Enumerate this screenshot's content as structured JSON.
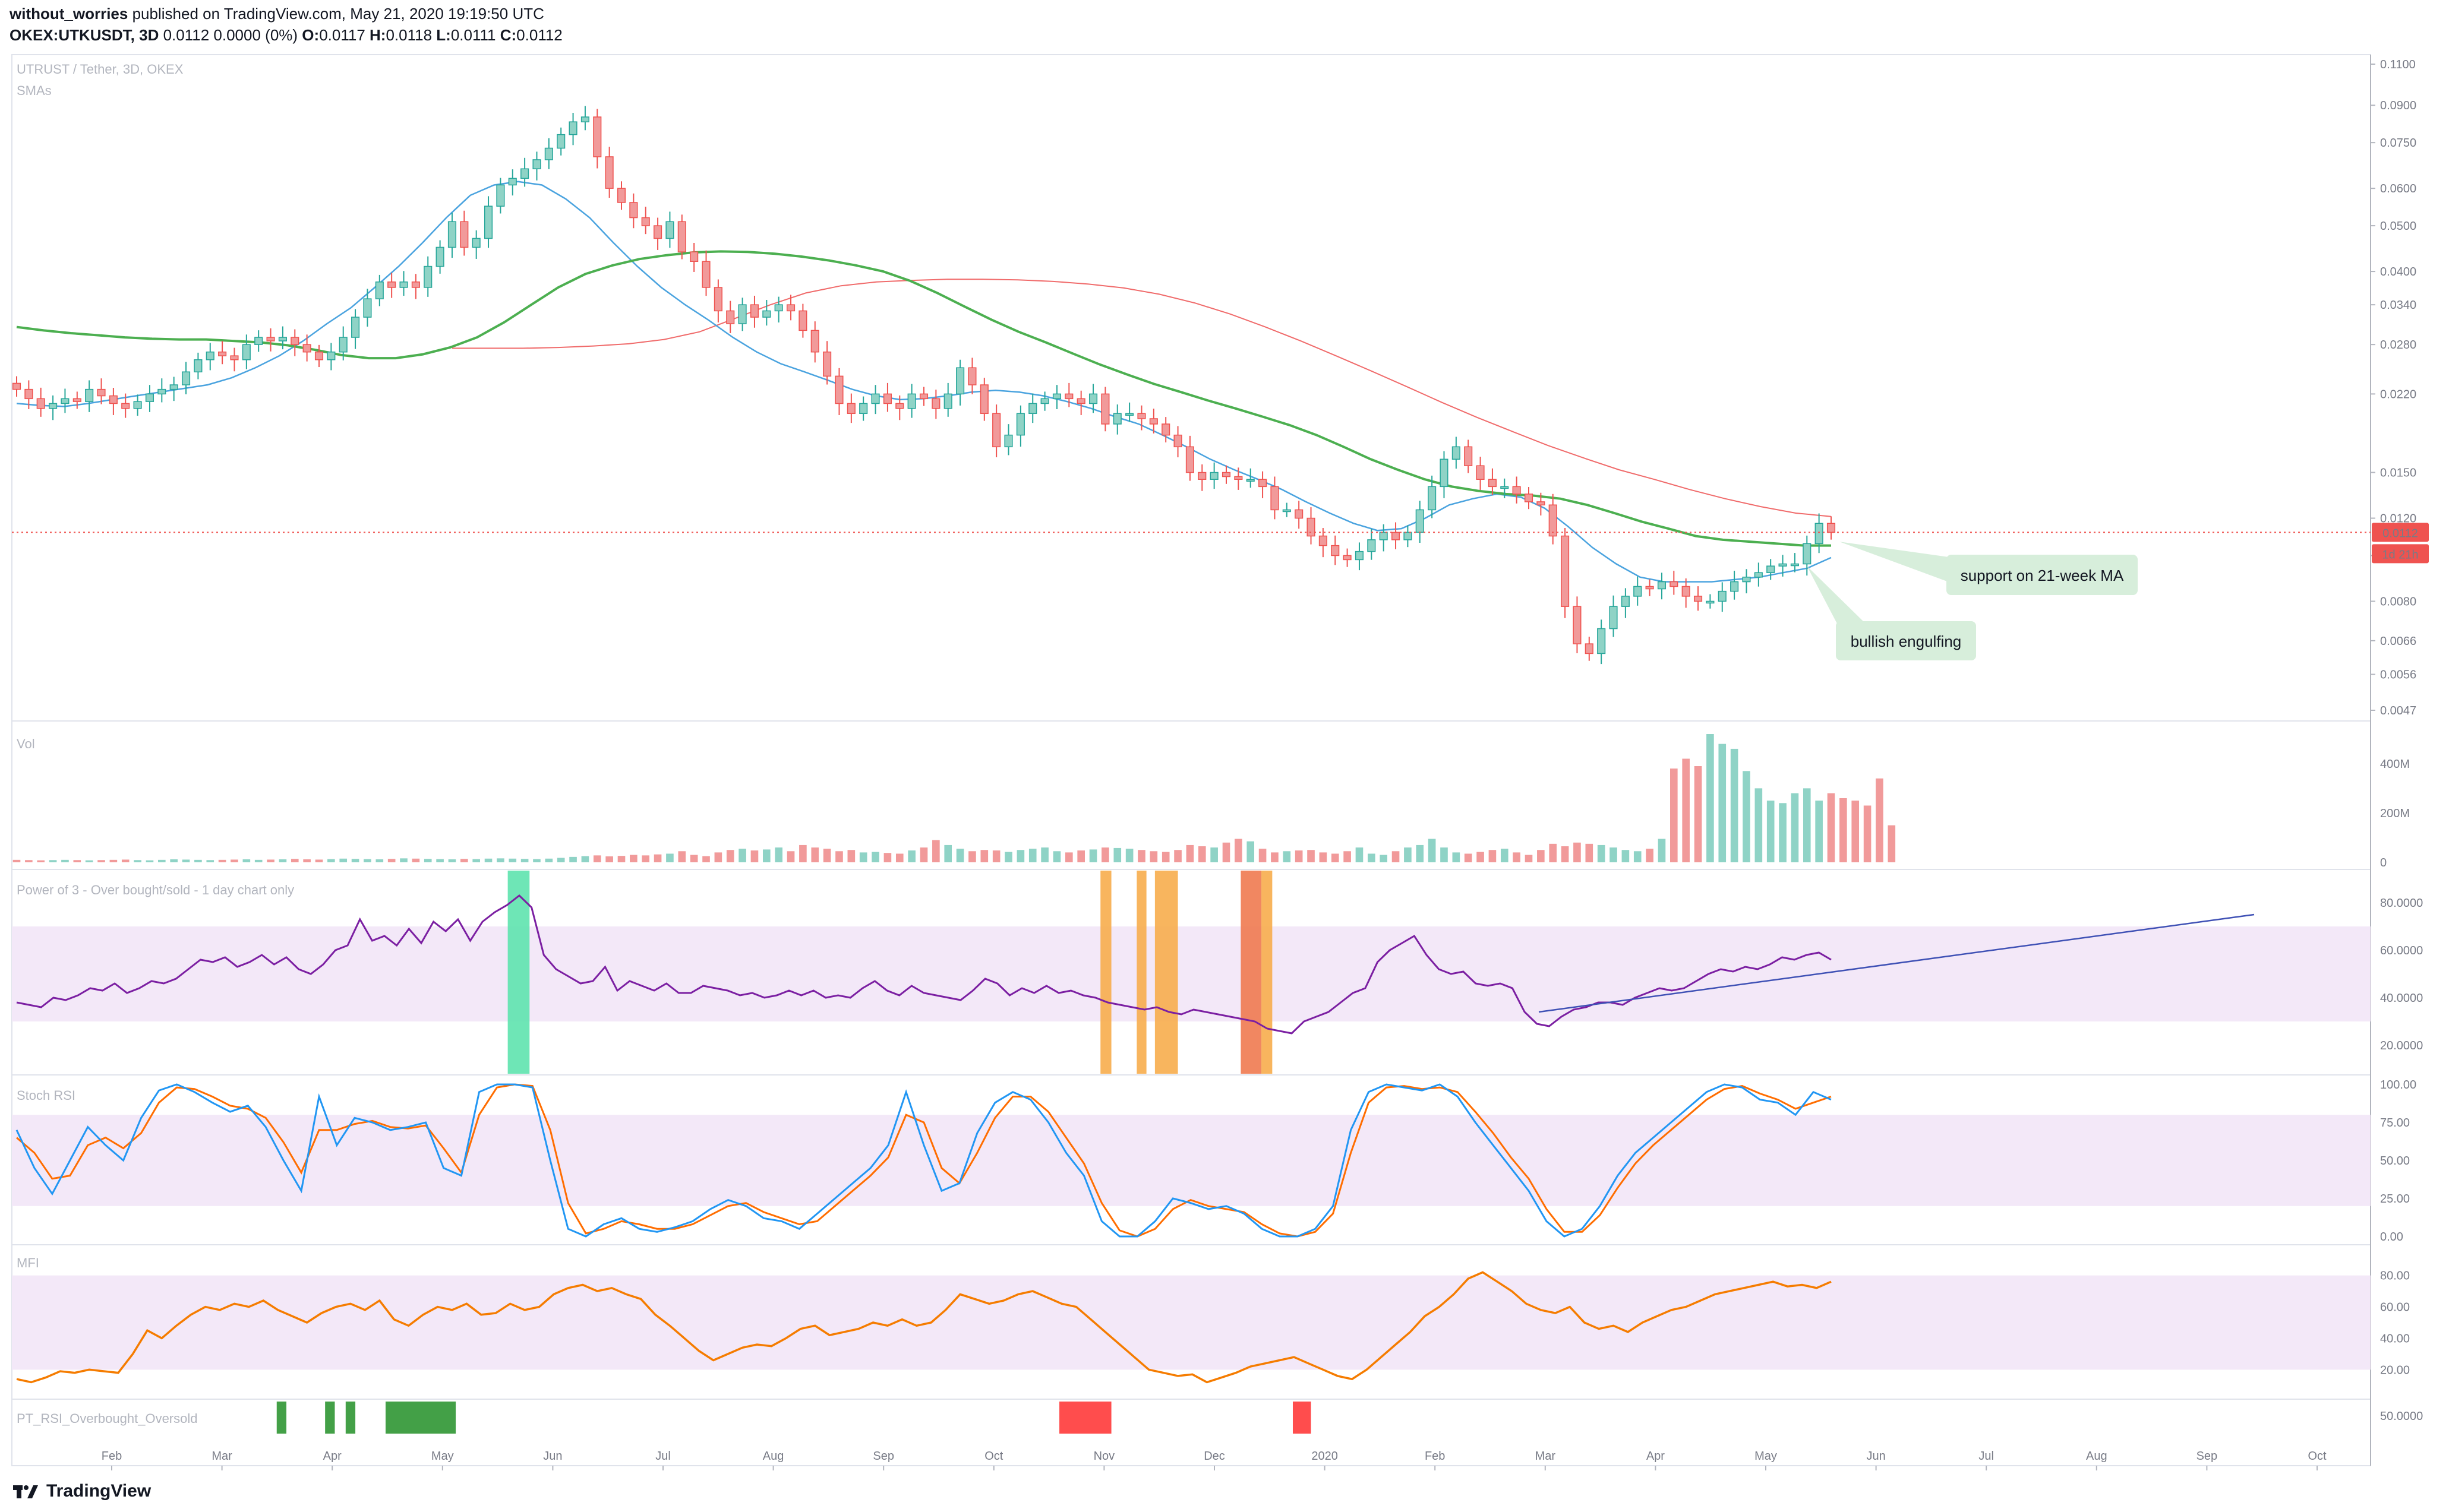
{
  "header": {
    "author": "without_worries",
    "published": "published on TradingView.com, May 21, 2020 19:19:50 UTC",
    "symbol": "OKEX:UTKUSDT, 3D",
    "ohlc": "O:0.0117 H:0.0118 L:0.0111 C:0.0112",
    "ohlc_parts": [
      {
        "k": "",
        "v": "0.0112 0.0000 (0%)"
      },
      {
        "k": "O:",
        "v": "0.0117"
      },
      {
        "k": "H:",
        "v": "0.0118"
      },
      {
        "k": "L:",
        "v": "0.0111"
      },
      {
        "k": "C:",
        "v": "0.0112"
      }
    ]
  },
  "footer": {
    "brand": "TradingView"
  },
  "colors": {
    "up": "#8fd3c6",
    "down": "#f19a9a",
    "upw": "#26a69a",
    "downw": "#ef5350",
    "sma_blue": "#4aa3df",
    "sma_green": "#4caf50",
    "sma_red": "#f06b6b",
    "power": "#7b1fa2",
    "stoch_k": "#2196f3",
    "stoch_d": "#ff6d00",
    "mfi": "#f57c00",
    "band": "#f3e8f8",
    "trend": "#3f51b5"
  },
  "chart_data": [
    {
      "type": "candlestick",
      "title": "UTRUST / Tether, 3D, OKEX",
      "subtitle": "SMAs",
      "scale": "log",
      "yticks": [
        "0.1100",
        "0.0900",
        "0.0750",
        "0.0600",
        "0.0500",
        "0.0400",
        "0.0340",
        "0.0280",
        "0.0220",
        "0.0150",
        "0.0120",
        "0.0100",
        "0.0080",
        "0.0066",
        "0.0056",
        "0.0047"
      ],
      "last_price_label": "0.0112",
      "countdown_label": "1d 21h",
      "x_labels": [
        "Feb",
        "Mar",
        "Apr",
        "May",
        "Jun",
        "Jul",
        "Aug",
        "Sep",
        "Oct",
        "Nov",
        "Dec",
        "2020",
        "Feb",
        "Mar",
        "Apr",
        "May",
        "Jun",
        "Jul",
        "Aug",
        "Sep",
        "Oct"
      ],
      "closes": [
        0.0225,
        0.0215,
        0.0205,
        0.021,
        0.0215,
        0.0212,
        0.0225,
        0.0218,
        0.021,
        0.0205,
        0.0212,
        0.022,
        0.0225,
        0.023,
        0.0245,
        0.026,
        0.027,
        0.0265,
        0.026,
        0.028,
        0.029,
        0.0285,
        0.029,
        0.028,
        0.027,
        0.026,
        0.027,
        0.029,
        0.032,
        0.035,
        0.038,
        0.037,
        0.038,
        0.037,
        0.041,
        0.045,
        0.051,
        0.045,
        0.047,
        0.055,
        0.061,
        0.063,
        0.066,
        0.069,
        0.073,
        0.078,
        0.083,
        0.085,
        0.07,
        0.06,
        0.056,
        0.052,
        0.05,
        0.047,
        0.051,
        0.044,
        0.042,
        0.037,
        0.033,
        0.031,
        0.034,
        0.032,
        0.033,
        0.034,
        0.033,
        0.03,
        0.027,
        0.024,
        0.021,
        0.02,
        0.021,
        0.022,
        0.021,
        0.0205,
        0.022,
        0.0215,
        0.0205,
        0.022,
        0.025,
        0.023,
        0.02,
        0.017,
        0.018,
        0.02,
        0.021,
        0.0215,
        0.022,
        0.0215,
        0.021,
        0.022,
        0.019,
        0.02,
        0.02,
        0.0195,
        0.019,
        0.018,
        0.017,
        0.015,
        0.0145,
        0.015,
        0.0147,
        0.0145,
        0.0145,
        0.014,
        0.0125,
        0.0125,
        0.012,
        0.011,
        0.0105,
        0.01,
        0.0098,
        0.0102,
        0.0108,
        0.0112,
        0.0108,
        0.0112,
        0.0125,
        0.014,
        0.016,
        0.017,
        0.0155,
        0.0145,
        0.014,
        0.014,
        0.0135,
        0.013,
        0.0128,
        0.011,
        0.0078,
        0.0065,
        0.0062,
        0.007,
        0.0078,
        0.0082,
        0.0086,
        0.0085,
        0.0088,
        0.0086,
        0.0082,
        0.008,
        0.008,
        0.0084,
        0.0088,
        0.009,
        0.0092,
        0.0095,
        0.0096,
        0.0096,
        0.0106,
        0.0117,
        0.0112
      ],
      "series": [
        {
          "name": "SMA short",
          "color": "sma_blue",
          "values": [
            0.021,
            0.0208,
            0.0207,
            0.021,
            0.0214,
            0.0218,
            0.0222,
            0.0226,
            0.023,
            0.0238,
            0.025,
            0.0265,
            0.0285,
            0.031,
            0.0335,
            0.037,
            0.041,
            0.046,
            0.052,
            0.058,
            0.061,
            0.062,
            0.061,
            0.057,
            0.052,
            0.046,
            0.041,
            0.037,
            0.034,
            0.0315,
            0.029,
            0.027,
            0.0255,
            0.0245,
            0.0235,
            0.0225,
            0.0218,
            0.0214,
            0.0215,
            0.0218,
            0.0222,
            0.0224,
            0.0222,
            0.0218,
            0.0212,
            0.0205,
            0.0197,
            0.019,
            0.018,
            0.017,
            0.016,
            0.0152,
            0.0145,
            0.0138,
            0.013,
            0.0123,
            0.0117,
            0.0113,
            0.0114,
            0.012,
            0.0128,
            0.0132,
            0.0135,
            0.0133,
            0.0126,
            0.0115,
            0.0104,
            0.0096,
            0.009,
            0.0088,
            0.0088,
            0.0088,
            0.0089,
            0.009,
            0.0092,
            0.0094,
            0.0099
          ]
        },
        {
          "name": "SMA 21-week",
          "color": "sma_green",
          "values": [
            0.0305,
            0.03,
            0.0296,
            0.0293,
            0.029,
            0.0288,
            0.0287,
            0.0287,
            0.0285,
            0.0283,
            0.0279,
            0.0273,
            0.0266,
            0.0262,
            0.0262,
            0.0267,
            0.0276,
            0.029,
            0.0312,
            0.034,
            0.037,
            0.0395,
            0.0412,
            0.0425,
            0.0433,
            0.0439,
            0.0441,
            0.044,
            0.0436,
            0.043,
            0.0422,
            0.0412,
            0.04,
            0.0382,
            0.036,
            0.0337,
            0.0316,
            0.0298,
            0.0283,
            0.0268,
            0.0254,
            0.0242,
            0.0231,
            0.0222,
            0.0213,
            0.0205,
            0.0197,
            0.0189,
            0.018,
            0.017,
            0.016,
            0.0152,
            0.0145,
            0.014,
            0.0137,
            0.0135,
            0.0134,
            0.0132,
            0.0128,
            0.0123,
            0.0118,
            0.0114,
            0.011,
            0.0108,
            0.0107,
            0.0106,
            0.0105,
            0.0105
          ]
        },
        {
          "name": "SMA long",
          "color": "sma_red",
          "values": [
            0.0275,
            0.0275,
            0.0275,
            0.0276,
            0.0278,
            0.0281,
            0.0287,
            0.0298,
            0.0318,
            0.034,
            0.036,
            0.0373,
            0.038,
            0.0383,
            0.0385,
            0.0385,
            0.0384,
            0.0381,
            0.0376,
            0.0369,
            0.0358,
            0.0343,
            0.0325,
            0.0305,
            0.0285,
            0.0265,
            0.0246,
            0.0228,
            0.0211,
            0.0196,
            0.0183,
            0.0171,
            0.0161,
            0.0152,
            0.0145,
            0.0138,
            0.0132,
            0.0127,
            0.0123,
            0.0121
          ]
        }
      ],
      "annotations": [
        "support on 21-week MA",
        "bullish engulfing"
      ]
    },
    {
      "type": "bar",
      "title": "Vol",
      "yticks": [
        "400M",
        "200M",
        "0"
      ],
      "values_millions": [
        10,
        9,
        8,
        9,
        10,
        9,
        8,
        9,
        10,
        11,
        9,
        8,
        10,
        12,
        11,
        10,
        9,
        10,
        11,
        12,
        10,
        11,
        12,
        14,
        12,
        11,
        13,
        15,
        14,
        13,
        12,
        14,
        16,
        15,
        14,
        13,
        12,
        14,
        13,
        15,
        16,
        15,
        14,
        13,
        15,
        18,
        22,
        25,
        28,
        24,
        26,
        30,
        28,
        32,
        35,
        45,
        30,
        25,
        40,
        50,
        55,
        48,
        52,
        60,
        45,
        70,
        60,
        55,
        45,
        50,
        40,
        42,
        38,
        35,
        48,
        60,
        90,
        70,
        55,
        45,
        50,
        48,
        42,
        50,
        55,
        60,
        45,
        40,
        48,
        52,
        60,
        58,
        55,
        50,
        45,
        42,
        50,
        70,
        65,
        60,
        80,
        95,
        85,
        55,
        40,
        45,
        48,
        50,
        40,
        35,
        45,
        60,
        35,
        30,
        45,
        60,
        70,
        95,
        60,
        40,
        35,
        42,
        50,
        55,
        40,
        30,
        50,
        75,
        65,
        80,
        75,
        70,
        60,
        50,
        45,
        55,
        95,
        380,
        420,
        390,
        520,
        480,
        460,
        370,
        300,
        250,
        240,
        280,
        300,
        250,
        280,
        260,
        250,
        230,
        340,
        150
      ],
      "colors_up": [
        false,
        true,
        false,
        true,
        true,
        false,
        true,
        false,
        false,
        true
      ]
    },
    {
      "type": "line",
      "title": "Power of 3 - Over bought/sold - 1 day chart only",
      "yticks": [
        "80.0000",
        "60.0000",
        "40.0000",
        "20.0000"
      ],
      "values": [
        38,
        37,
        36,
        40,
        39,
        41,
        44,
        43,
        46,
        42,
        44,
        47,
        46,
        48,
        52,
        56,
        55,
        57,
        53,
        55,
        58,
        54,
        57,
        52,
        50,
        54,
        60,
        62,
        73,
        64,
        66,
        62,
        69,
        63,
        72,
        68,
        73,
        64,
        72,
        76,
        79,
        83,
        78,
        58,
        52,
        49,
        46,
        47,
        53,
        43,
        47,
        45,
        43,
        46,
        42,
        42,
        45,
        44,
        43,
        41,
        42,
        40,
        41,
        43,
        41,
        43,
        40,
        41,
        40,
        44,
        47,
        43,
        41,
        45,
        42,
        41,
        40,
        39,
        43,
        48,
        46,
        41,
        44,
        42,
        45,
        42,
        43,
        41,
        40,
        38,
        37,
        36,
        35,
        36,
        34,
        33,
        35,
        34,
        33,
        32,
        31,
        30,
        27,
        26,
        25,
        30,
        32,
        34,
        38,
        42,
        44,
        55,
        60,
        63,
        66,
        58,
        52,
        50,
        51,
        46,
        45,
        46,
        44,
        34,
        29,
        28,
        32,
        35,
        36,
        38,
        38,
        37,
        40,
        42,
        44,
        43,
        44,
        47,
        50,
        52,
        51,
        53,
        52,
        54,
        57,
        56,
        58,
        59,
        56
      ]
    },
    {
      "type": "line",
      "title": "Stoch RSI",
      "yticks": [
        "100.00",
        "75.00",
        "50.00",
        "25.00",
        "0.00"
      ],
      "series": [
        {
          "name": "K",
          "color": "stoch_k",
          "values": [
            70,
            45,
            28,
            50,
            72,
            60,
            50,
            78,
            96,
            100,
            95,
            88,
            82,
            86,
            72,
            50,
            30,
            92,
            60,
            78,
            75,
            70,
            72,
            75,
            45,
            40,
            95,
            100,
            100,
            98,
            50,
            5,
            0,
            8,
            12,
            5,
            3,
            6,
            10,
            18,
            24,
            20,
            12,
            10,
            5,
            15,
            25,
            35,
            45,
            60,
            95,
            60,
            30,
            35,
            68,
            88,
            95,
            90,
            75,
            55,
            40,
            10,
            0,
            0,
            10,
            25,
            22,
            18,
            20,
            15,
            5,
            0,
            0,
            5,
            20,
            70,
            95,
            100,
            98,
            96,
            100,
            92,
            75,
            60,
            45,
            30,
            10,
            0,
            5,
            20,
            40,
            55,
            65,
            75,
            85,
            95,
            100,
            98,
            90,
            88,
            80,
            95,
            90
          ]
        },
        {
          "name": "D",
          "color": "stoch_d",
          "values": [
            65,
            55,
            38,
            40,
            60,
            65,
            58,
            68,
            88,
            98,
            97,
            92,
            86,
            84,
            78,
            62,
            42,
            70,
            70,
            74,
            76,
            72,
            71,
            73,
            58,
            42,
            80,
            98,
            100,
            99,
            70,
            22,
            2,
            5,
            10,
            8,
            5,
            5,
            8,
            14,
            20,
            22,
            16,
            12,
            8,
            10,
            20,
            30,
            40,
            52,
            80,
            75,
            45,
            35,
            55,
            78,
            92,
            92,
            82,
            65,
            48,
            22,
            4,
            0,
            5,
            18,
            24,
            20,
            18,
            16,
            8,
            2,
            0,
            3,
            15,
            55,
            88,
            98,
            99,
            97,
            98,
            95,
            82,
            68,
            52,
            38,
            18,
            3,
            3,
            14,
            32,
            48,
            60,
            70,
            80,
            90,
            97,
            99,
            94,
            90,
            84,
            88,
            92
          ]
        }
      ]
    },
    {
      "type": "line",
      "title": "MFI",
      "yticks": [
        "80.00",
        "60.00",
        "40.00",
        "20.00"
      ],
      "values": [
        14,
        12,
        15,
        19,
        18,
        20,
        19,
        18,
        30,
        45,
        40,
        48,
        55,
        60,
        58,
        62,
        60,
        64,
        58,
        54,
        50,
        56,
        60,
        62,
        58,
        64,
        52,
        48,
        55,
        60,
        58,
        62,
        55,
        56,
        62,
        58,
        60,
        68,
        72,
        74,
        70,
        72,
        68,
        65,
        55,
        48,
        40,
        32,
        26,
        30,
        34,
        36,
        35,
        40,
        46,
        48,
        42,
        44,
        46,
        50,
        48,
        52,
        48,
        50,
        58,
        68,
        65,
        62,
        64,
        68,
        70,
        66,
        62,
        60,
        52,
        44,
        36,
        28,
        20,
        18,
        16,
        17,
        12,
        15,
        18,
        22,
        24,
        26,
        28,
        24,
        20,
        16,
        14,
        20,
        28,
        36,
        44,
        54,
        60,
        68,
        78,
        82,
        76,
        70,
        62,
        58,
        56,
        60,
        50,
        46,
        48,
        44,
        50,
        54,
        58,
        60,
        64,
        68,
        70,
        72,
        74,
        76,
        73,
        74,
        72,
        76
      ]
    },
    {
      "type": "bar",
      "title": "PT_RSI_Overbought_Oversold",
      "yticks": [
        "50.0000"
      ],
      "signals": [
        "green",
        "green",
        "green",
        "green",
        "red",
        "red"
      ]
    }
  ]
}
